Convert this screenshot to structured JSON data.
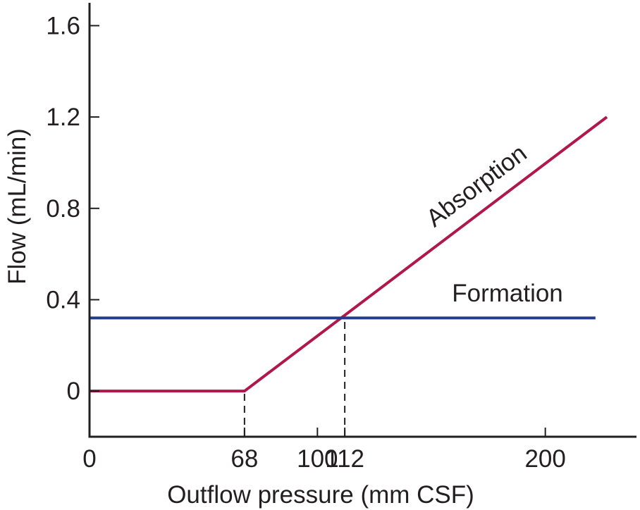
{
  "chart_data": {
    "type": "line",
    "xlabel": "Outflow pressure (mm CSF)",
    "ylabel": "Flow (mL/min)",
    "xlim": [
      0,
      240
    ],
    "ylim": [
      -0.2,
      1.7
    ],
    "x_ticks": [
      0,
      68,
      100,
      112,
      200
    ],
    "x_tick_labels": [
      "0",
      "68",
      "100",
      "112",
      "200"
    ],
    "y_ticks": [
      0,
      0.4,
      0.8,
      1.2,
      1.6
    ],
    "y_tick_labels": [
      "0",
      "0.4",
      "0.8",
      "1.2",
      "1.6"
    ],
    "grid": false,
    "series": [
      {
        "name": "Absorption",
        "color": "#b0174a",
        "x": [
          0,
          68,
          227
        ],
        "y": [
          0,
          0,
          1.2
        ]
      },
      {
        "name": "Formation",
        "color": "#233b8c",
        "x": [
          0,
          222
        ],
        "y": [
          0.32,
          0.32
        ]
      }
    ],
    "reference_lines": [
      {
        "x": 68,
        "y_from": -0.2,
        "y_to": 0,
        "style": "dashed"
      },
      {
        "x": 112,
        "y_from": -0.2,
        "y_to": 0.32,
        "style": "dashed"
      }
    ]
  }
}
